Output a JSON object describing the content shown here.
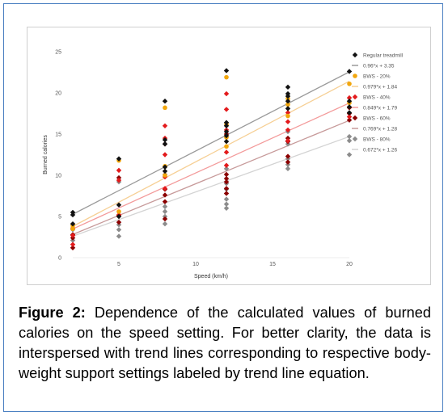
{
  "caption": {
    "label": "Figure 2:",
    "text": "Dependence of the calculated values of burned calories on the speed setting. For better clarity, the data is interspersed with trend lines corresponding to respective body-weight support settings labeled by trend line equation."
  },
  "chart_data": {
    "type": "scatter",
    "xlabel": "Speed (km/h)",
    "ylabel": "Burned calories",
    "xlim": [
      2,
      20
    ],
    "ylim": [
      0,
      25
    ],
    "xticks": [
      5,
      10,
      15,
      20
    ],
    "yticks": [
      0,
      5,
      10,
      15,
      20,
      25
    ],
    "grid": false,
    "legend_position": "top-right",
    "series": [
      {
        "name": "Regular treadmill",
        "marker": "diamond",
        "color": "#111111",
        "trend": {
          "label": "0.96*x + 3.35",
          "slope": 0.96,
          "intercept": 3.35,
          "color": "#9a9a9a"
        },
        "points": [
          [
            2,
            5.5
          ],
          [
            2,
            5.2
          ],
          [
            2,
            4.1
          ],
          [
            5,
            12.0
          ],
          [
            5,
            6.4
          ],
          [
            5,
            5.0
          ],
          [
            8,
            19.0
          ],
          [
            8,
            14.3
          ],
          [
            8,
            13.8
          ],
          [
            8,
            11.0
          ],
          [
            8,
            10.5
          ],
          [
            12,
            22.7
          ],
          [
            12,
            16.4
          ],
          [
            12,
            16.0
          ],
          [
            12,
            15.3
          ],
          [
            12,
            14.8
          ],
          [
            12,
            14.1
          ],
          [
            16,
            20.7
          ],
          [
            16,
            19.9
          ],
          [
            16,
            19.6
          ],
          [
            16,
            19.0
          ],
          [
            16,
            18.1
          ],
          [
            20,
            22.6
          ],
          [
            20,
            19.0
          ],
          [
            20,
            18.3
          ],
          [
            20,
            17.6
          ]
        ]
      },
      {
        "name": "BWS - 20%",
        "marker": "circle",
        "color": "#f2a60c",
        "trend": {
          "label": "0.979*x + 1.84",
          "slope": 0.979,
          "intercept": 1.84,
          "color": "#f6cf94"
        },
        "points": [
          [
            2,
            3.9
          ],
          [
            2,
            3.5
          ],
          [
            5,
            11.8
          ],
          [
            5,
            5.6
          ],
          [
            8,
            18.2
          ],
          [
            8,
            11.1
          ],
          [
            8,
            10.0
          ],
          [
            12,
            21.9
          ],
          [
            12,
            16.2
          ],
          [
            12,
            14.6
          ],
          [
            12,
            13.5
          ],
          [
            16,
            19.3
          ],
          [
            16,
            18.6
          ],
          [
            16,
            17.2
          ],
          [
            20,
            21.1
          ],
          [
            20,
            18.8
          ]
        ]
      },
      {
        "name": "BWS - 40%",
        "marker": "diamond",
        "color": "#e31a1c",
        "trend": {
          "label": "0.849*x + 1.79",
          "slope": 0.849,
          "intercept": 1.79,
          "color": "#f39a9a"
        },
        "points": [
          [
            2,
            3.6
          ],
          [
            2,
            2.7
          ],
          [
            2,
            1.6
          ],
          [
            5,
            10.6
          ],
          [
            5,
            9.4
          ],
          [
            5,
            5.2
          ],
          [
            8,
            16.0
          ],
          [
            8,
            14.5
          ],
          [
            8,
            12.5
          ],
          [
            8,
            9.8
          ],
          [
            8,
            8.4
          ],
          [
            12,
            19.9
          ],
          [
            12,
            18.0
          ],
          [
            12,
            15.5
          ],
          [
            12,
            12.8
          ],
          [
            12,
            11.2
          ],
          [
            16,
            17.6
          ],
          [
            16,
            16.5
          ],
          [
            16,
            15.5
          ],
          [
            16,
            14.2
          ],
          [
            20,
            19.4
          ],
          [
            20,
            17.1
          ]
        ]
      },
      {
        "name": "BWS - 60%",
        "marker": "diamond",
        "color": "#8b0000",
        "trend": {
          "label": "0.769*x + 1.28",
          "slope": 0.769,
          "intercept": 1.28,
          "color": "#c79a9a"
        },
        "points": [
          [
            2,
            2.8
          ],
          [
            2,
            2.4
          ],
          [
            2,
            1.2
          ],
          [
            5,
            9.7
          ],
          [
            5,
            5.1
          ],
          [
            5,
            4.3
          ],
          [
            8,
            13.8
          ],
          [
            8,
            8.3
          ],
          [
            8,
            7.6
          ],
          [
            8,
            6.8
          ],
          [
            8,
            4.7
          ],
          [
            12,
            15.0
          ],
          [
            12,
            10.1
          ],
          [
            12,
            9.6
          ],
          [
            12,
            9.2
          ],
          [
            12,
            8.4
          ],
          [
            12,
            7.8
          ],
          [
            16,
            14.5
          ],
          [
            16,
            14.1
          ],
          [
            16,
            12.3
          ],
          [
            16,
            11.6
          ],
          [
            20,
            18.2
          ],
          [
            20,
            17.5
          ],
          [
            20,
            16.7
          ]
        ]
      },
      {
        "name": "BWS - 80%",
        "marker": "diamond",
        "color": "#8c8c8c",
        "trend": {
          "label": "0.672*x + 1.26",
          "slope": 0.672,
          "intercept": 1.26,
          "color": "#d3d3d3"
        },
        "points": [
          [
            2,
            3.4
          ],
          [
            2,
            2.1
          ],
          [
            5,
            9.2
          ],
          [
            5,
            4.0
          ],
          [
            5,
            3.4
          ],
          [
            5,
            2.6
          ],
          [
            8,
            10.1
          ],
          [
            8,
            6.2
          ],
          [
            8,
            5.6
          ],
          [
            8,
            5.0
          ],
          [
            8,
            4.1
          ],
          [
            12,
            10.8
          ],
          [
            12,
            9.0
          ],
          [
            12,
            8.3
          ],
          [
            12,
            7.1
          ],
          [
            12,
            6.5
          ],
          [
            12,
            6.0
          ],
          [
            16,
            15.3
          ],
          [
            16,
            13.8
          ],
          [
            16,
            12.0
          ],
          [
            16,
            11.3
          ],
          [
            16,
            10.8
          ],
          [
            20,
            14.7
          ],
          [
            20,
            14.2
          ],
          [
            20,
            12.5
          ]
        ]
      }
    ]
  }
}
